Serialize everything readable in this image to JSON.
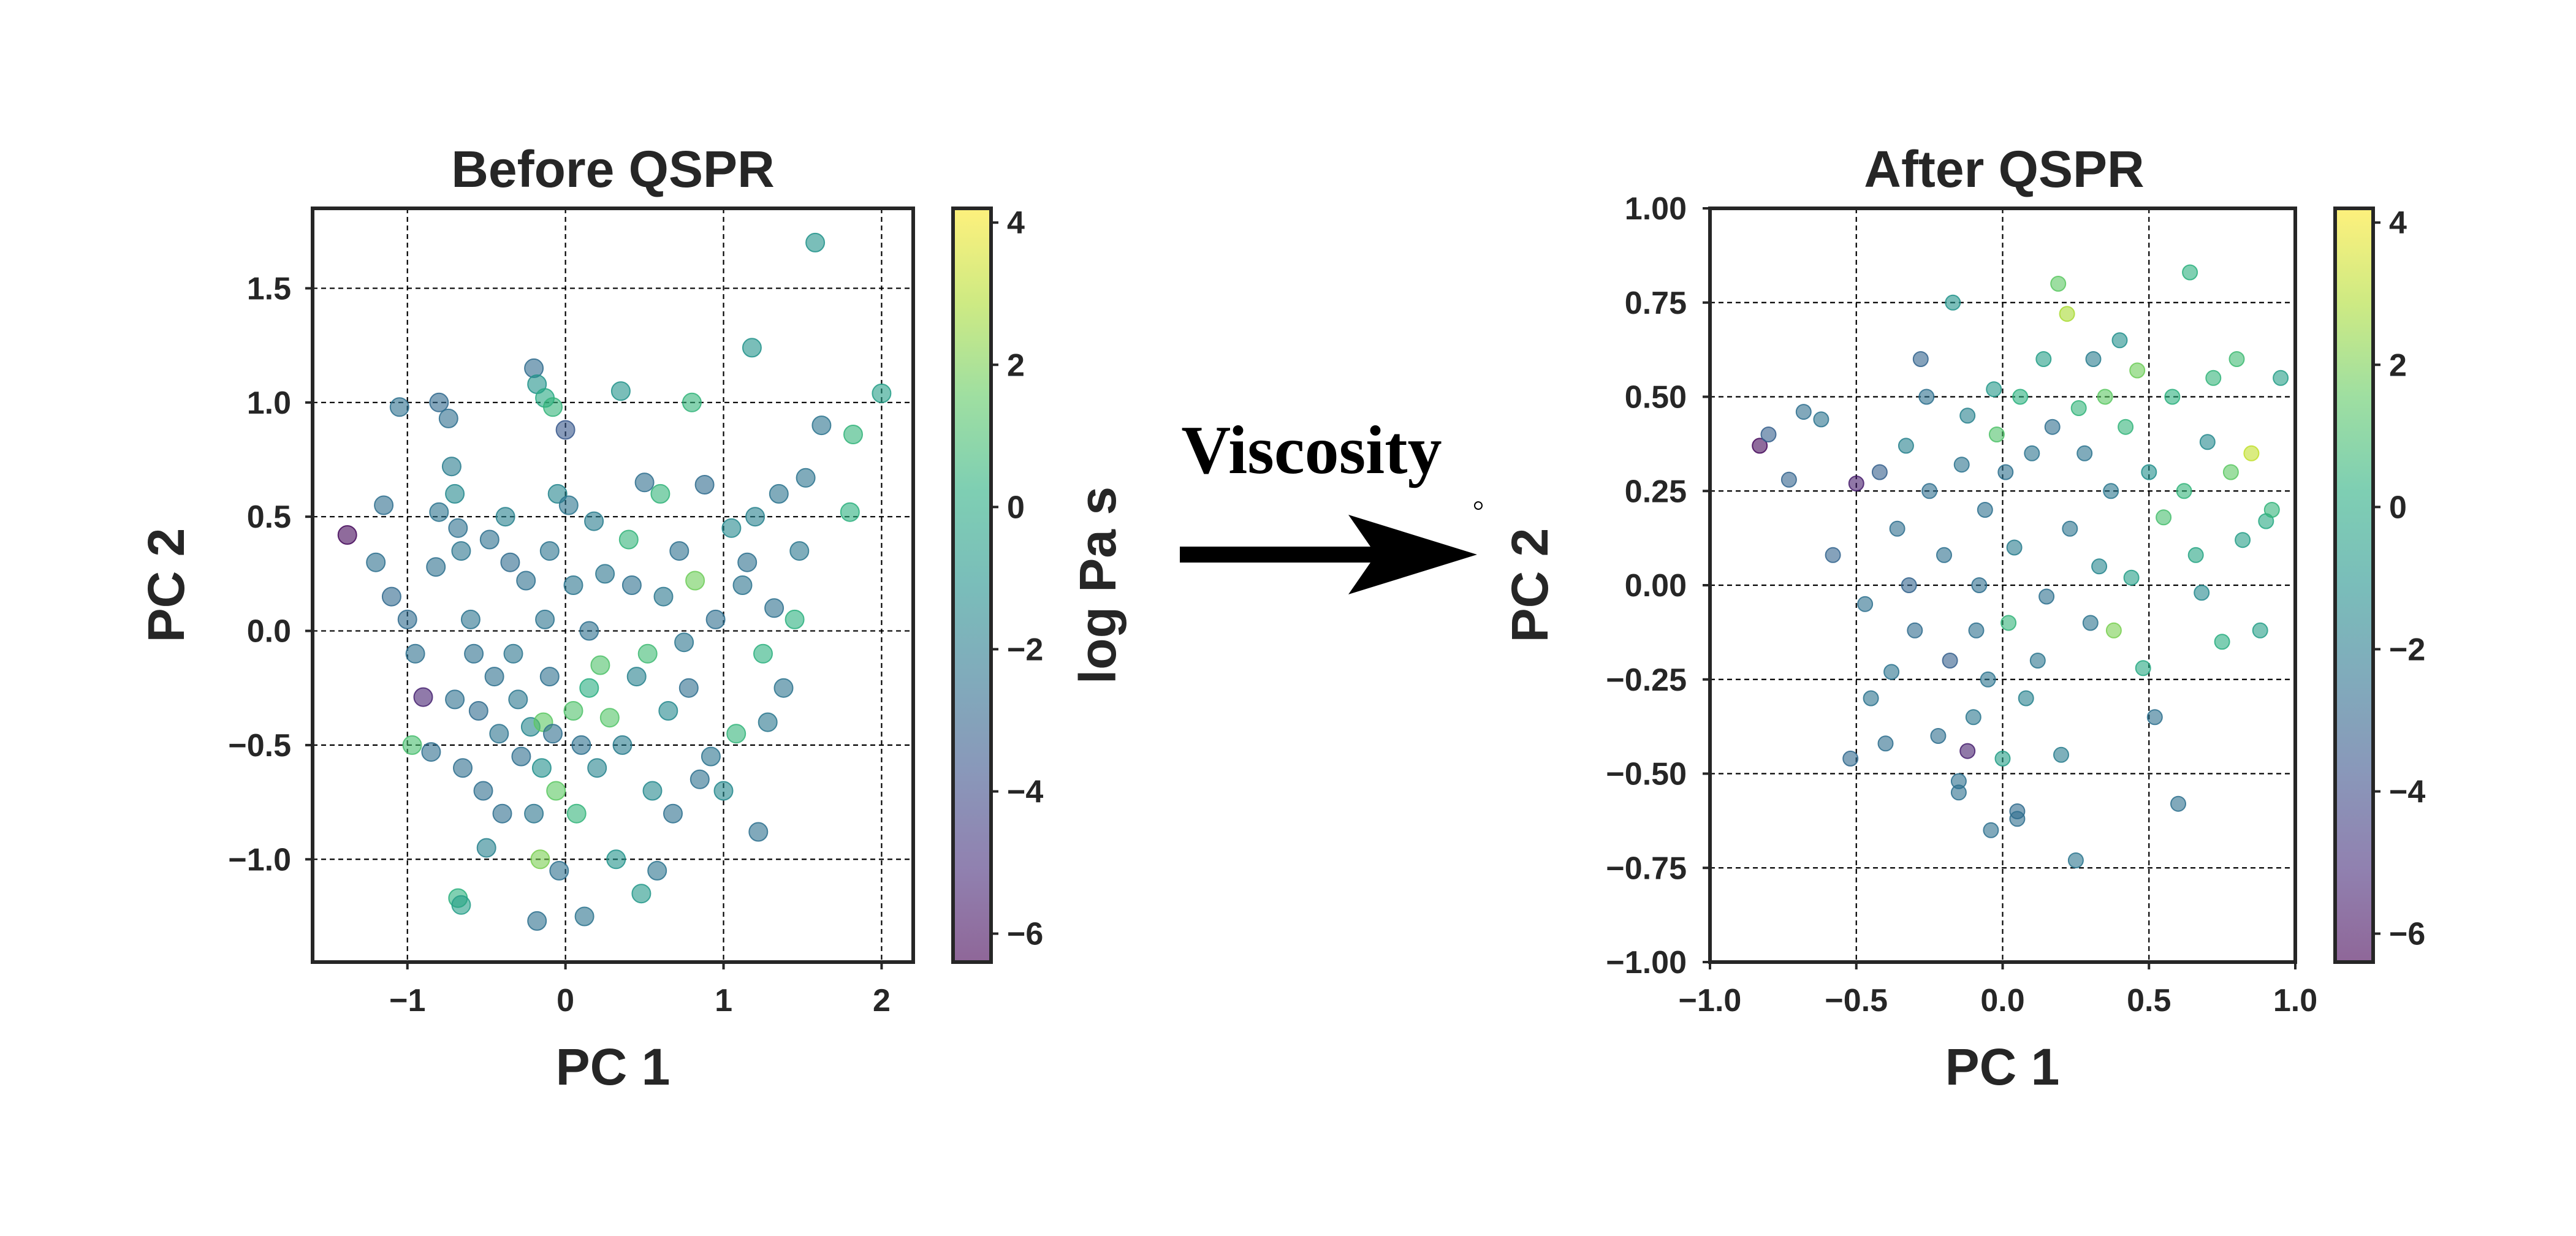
{
  "chart_data": [
    {
      "type": "scatter",
      "title": "Before QSPR",
      "xlabel": "PC 1",
      "ylabel": "PC 2",
      "xlim": [
        -1.6,
        2.2
      ],
      "ylim": [
        -1.45,
        1.85
      ],
      "xticks": [
        -1,
        0,
        1,
        2
      ],
      "xtick_labels": [
        "−1",
        "0",
        "1",
        "2"
      ],
      "yticks": [
        -1.0,
        -0.5,
        0.0,
        0.5,
        1.0,
        1.5
      ],
      "ytick_labels": [
        "−1.0",
        "−0.5",
        "0.0",
        "0.5",
        "1.0",
        "1.5"
      ],
      "grid": true,
      "colorbar": {
        "label": "log Pa s",
        "range": [
          -6.4,
          4.2
        ],
        "ticks": [
          4,
          2,
          0,
          -2,
          -4,
          -6
        ],
        "tick_labels": [
          "4",
          "2",
          "0",
          "−2",
          "−4",
          "−6"
        ],
        "colormap": "viridis"
      },
      "points": [
        [
          -1.38,
          0.42,
          -6.2
        ],
        [
          -1.2,
          0.3,
          -2.5
        ],
        [
          -1.15,
          0.55,
          -2.6
        ],
        [
          -1.05,
          0.98,
          -2.5
        ],
        [
          -1.1,
          0.15,
          -2.8
        ],
        [
          -1.0,
          0.05,
          -2.7
        ],
        [
          -0.95,
          -0.1,
          -2.5
        ],
        [
          -0.9,
          -0.29,
          -5.4
        ],
        [
          -0.97,
          -0.5,
          1.0
        ],
        [
          -0.85,
          -0.53,
          -2.6
        ],
        [
          -0.82,
          0.28,
          -2.5
        ],
        [
          -0.8,
          0.52,
          -2.4
        ],
        [
          -0.8,
          1.0,
          -2.8
        ],
        [
          -0.74,
          0.93,
          -2.6
        ],
        [
          -0.72,
          0.72,
          -2.0
        ],
        [
          -0.7,
          0.6,
          -1.5
        ],
        [
          -0.68,
          0.45,
          -2.5
        ],
        [
          -0.66,
          0.35,
          -2.3
        ],
        [
          -0.7,
          -0.3,
          -2.5
        ],
        [
          -0.65,
          -0.6,
          -2.6
        ],
        [
          -0.68,
          -1.17,
          0.3
        ],
        [
          -0.66,
          -1.2,
          -0.5
        ],
        [
          -0.6,
          0.05,
          -2.4
        ],
        [
          -0.58,
          -0.1,
          -2.5
        ],
        [
          -0.55,
          -0.35,
          -2.7
        ],
        [
          -0.52,
          -0.7,
          -2.6
        ],
        [
          -0.5,
          -0.95,
          -1.8
        ],
        [
          -0.48,
          0.4,
          -2.5
        ],
        [
          -0.45,
          -0.2,
          -2.5
        ],
        [
          -0.42,
          -0.45,
          -2.4
        ],
        [
          -0.4,
          -0.8,
          -2.6
        ],
        [
          -0.38,
          0.5,
          -1.8
        ],
        [
          -0.35,
          0.3,
          -2.7
        ],
        [
          -0.33,
          -0.1,
          -2.3
        ],
        [
          -0.3,
          -0.3,
          -2.2
        ],
        [
          -0.28,
          -0.55,
          -2.6
        ],
        [
          -0.25,
          0.22,
          -2.5
        ],
        [
          -0.22,
          -0.42,
          -1.6
        ],
        [
          -0.2,
          -0.8,
          -2.3
        ],
        [
          -0.18,
          -1.27,
          -2.5
        ],
        [
          -0.16,
          -1.0,
          2.0
        ],
        [
          -0.15,
          -0.6,
          -1.2
        ],
        [
          -0.14,
          -0.4,
          1.5
        ],
        [
          -0.13,
          0.05,
          -2.4
        ],
        [
          -0.2,
          1.15,
          -2.7
        ],
        [
          -0.18,
          1.08,
          -1.0
        ],
        [
          -0.13,
          1.02,
          0.0
        ],
        [
          -0.08,
          0.98,
          0.5
        ],
        [
          -0.05,
          0.6,
          -1.6
        ],
        [
          -0.1,
          0.35,
          -2.4
        ],
        [
          -0.1,
          -0.2,
          -2.5
        ],
        [
          -0.08,
          -0.45,
          -2.6
        ],
        [
          -0.06,
          -0.7,
          1.5
        ],
        [
          -0.04,
          -1.05,
          -2.5
        ],
        [
          0.0,
          0.88,
          -3.5
        ],
        [
          0.02,
          0.55,
          -2.3
        ],
        [
          0.05,
          0.2,
          -2.3
        ],
        [
          0.05,
          -0.35,
          1.2
        ],
        [
          0.07,
          -0.8,
          0.5
        ],
        [
          0.1,
          -0.5,
          -2.5
        ],
        [
          0.12,
          -1.25,
          -2.4
        ],
        [
          0.15,
          0.0,
          -2.5
        ],
        [
          0.15,
          -0.25,
          0.2
        ],
        [
          0.18,
          0.48,
          -2.0
        ],
        [
          0.2,
          -0.6,
          -1.7
        ],
        [
          0.22,
          -0.15,
          1.2
        ],
        [
          0.25,
          0.25,
          -2.3
        ],
        [
          0.28,
          -0.38,
          1.3
        ],
        [
          0.32,
          -1.0,
          -1.0
        ],
        [
          0.35,
          1.05,
          -1.0
        ],
        [
          0.36,
          -0.5,
          -2.0
        ],
        [
          0.4,
          0.4,
          0.5
        ],
        [
          0.42,
          0.2,
          -2.5
        ],
        [
          0.45,
          -0.2,
          -1.8
        ],
        [
          0.48,
          -1.15,
          -0.8
        ],
        [
          0.5,
          0.65,
          -2.6
        ],
        [
          0.52,
          -0.1,
          0.8
        ],
        [
          0.55,
          -0.7,
          -1.5
        ],
        [
          0.58,
          -1.05,
          -2.4
        ],
        [
          0.6,
          0.6,
          0.5
        ],
        [
          0.62,
          0.15,
          -2.2
        ],
        [
          0.65,
          -0.35,
          -1.5
        ],
        [
          0.68,
          -0.8,
          -2.5
        ],
        [
          0.72,
          0.35,
          -2.5
        ],
        [
          0.75,
          -0.05,
          -2.3
        ],
        [
          0.78,
          -0.25,
          -2.6
        ],
        [
          0.8,
          1.0,
          0.5
        ],
        [
          0.82,
          0.22,
          1.8
        ],
        [
          0.85,
          -0.65,
          -2.5
        ],
        [
          0.88,
          0.64,
          -2.7
        ],
        [
          0.92,
          -0.55,
          -2.4
        ],
        [
          0.95,
          0.05,
          -2.6
        ],
        [
          1.0,
          -0.7,
          -1.5
        ],
        [
          1.05,
          0.45,
          -1.5
        ],
        [
          1.08,
          -0.45,
          0.5
        ],
        [
          1.12,
          0.2,
          -2.4
        ],
        [
          1.15,
          0.3,
          -2.5
        ],
        [
          1.18,
          1.24,
          -1.0
        ],
        [
          1.2,
          0.5,
          -1.8
        ],
        [
          1.22,
          -0.88,
          -2.5
        ],
        [
          1.25,
          -0.1,
          0.3
        ],
        [
          1.28,
          -0.4,
          -2.2
        ],
        [
          1.32,
          0.1,
          -2.5
        ],
        [
          1.35,
          0.6,
          -2.4
        ],
        [
          1.38,
          -0.25,
          -2.4
        ],
        [
          1.45,
          0.05,
          0.3
        ],
        [
          1.52,
          0.67,
          -2.4
        ],
        [
          1.48,
          0.35,
          -2.2
        ],
        [
          1.58,
          1.7,
          -1.0
        ],
        [
          1.62,
          0.9,
          -2.4
        ],
        [
          1.8,
          0.52,
          0.3
        ],
        [
          1.82,
          0.86,
          0.5
        ],
        [
          2.0,
          1.04,
          -0.5
        ]
      ]
    },
    {
      "type": "scatter",
      "title": "After QSPR",
      "xlabel": "PC 1",
      "ylabel": "PC 2",
      "xlim": [
        -1.0,
        1.0
      ],
      "ylim": [
        -1.0,
        1.0
      ],
      "xticks": [
        -1.0,
        -0.5,
        0.0,
        0.5,
        1.0
      ],
      "xtick_labels": [
        "−1.0",
        "−0.5",
        "0.0",
        "0.5",
        "1.0"
      ],
      "yticks": [
        -1.0,
        -0.75,
        -0.5,
        -0.25,
        0.0,
        0.25,
        0.5,
        0.75,
        1.0
      ],
      "ytick_labels": [
        "−1.00",
        "−0.75",
        "−0.50",
        "−0.25",
        "0.00",
        "0.25",
        "0.50",
        "0.75",
        "1.00"
      ],
      "grid": true,
      "colorbar": {
        "label": "",
        "range": [
          -6.4,
          4.2
        ],
        "ticks": [
          4,
          2,
          0,
          -2,
          -4,
          -6
        ],
        "tick_labels": [
          "4",
          "2",
          "0",
          "−2",
          "−4",
          "−6"
        ],
        "colormap": "viridis"
      },
      "points": [
        [
          -0.83,
          0.37,
          -6.2
        ],
        [
          -0.8,
          0.4,
          -3.2
        ],
        [
          -0.73,
          0.28,
          -3.0
        ],
        [
          -0.68,
          0.46,
          -2.6
        ],
        [
          -0.62,
          0.44,
          -2.4
        ],
        [
          -0.58,
          0.08,
          -3.0
        ],
        [
          -0.5,
          0.27,
          -5.6
        ],
        [
          -0.52,
          -0.46,
          -2.8
        ],
        [
          -0.47,
          -0.05,
          -2.5
        ],
        [
          -0.45,
          -0.3,
          -2.4
        ],
        [
          -0.42,
          0.3,
          -3.2
        ],
        [
          -0.4,
          -0.42,
          -2.6
        ],
        [
          -0.38,
          -0.23,
          -2.4
        ],
        [
          -0.36,
          0.15,
          -2.6
        ],
        [
          -0.33,
          0.37,
          -1.8
        ],
        [
          -0.32,
          0.0,
          -3.0
        ],
        [
          -0.3,
          -0.12,
          -2.7
        ],
        [
          -0.28,
          0.6,
          -3.0
        ],
        [
          -0.26,
          0.5,
          -2.5
        ],
        [
          -0.25,
          0.25,
          -2.6
        ],
        [
          -0.22,
          -0.4,
          -2.6
        ],
        [
          -0.2,
          0.08,
          -2.5
        ],
        [
          -0.18,
          -0.2,
          -3.2
        ],
        [
          -0.17,
          0.75,
          -1.0
        ],
        [
          -0.15,
          -0.55,
          -2.5
        ],
        [
          -0.14,
          0.32,
          -2.4
        ],
        [
          -0.12,
          0.45,
          -1.8
        ],
        [
          -0.1,
          -0.35,
          -2.2
        ],
        [
          -0.09,
          -0.12,
          -2.5
        ],
        [
          -0.08,
          0.0,
          -2.6
        ],
        [
          -0.06,
          0.2,
          -2.5
        ],
        [
          -0.05,
          -0.25,
          -2.4
        ],
        [
          -0.04,
          -0.65,
          -2.5
        ],
        [
          -0.03,
          0.52,
          -0.8
        ],
        [
          -0.02,
          0.4,
          1.2
        ],
        [
          0.0,
          -0.46,
          -0.5
        ],
        [
          0.01,
          0.3,
          -2.5
        ],
        [
          0.02,
          -0.1,
          0.5
        ],
        [
          0.04,
          0.1,
          -2.0
        ],
        [
          0.05,
          -0.6,
          -2.7
        ],
        [
          0.06,
          0.5,
          0.3
        ],
        [
          0.08,
          -0.3,
          -1.8
        ],
        [
          0.1,
          0.35,
          -2.4
        ],
        [
          0.12,
          -0.2,
          -2.3
        ],
        [
          0.14,
          0.6,
          -0.5
        ],
        [
          0.15,
          -0.03,
          -2.5
        ],
        [
          0.17,
          0.42,
          -2.6
        ],
        [
          0.19,
          0.8,
          1.5
        ],
        [
          0.2,
          -0.45,
          -2.0
        ],
        [
          0.22,
          0.72,
          2.8
        ],
        [
          0.23,
          0.15,
          -2.4
        ],
        [
          0.25,
          -0.73,
          -2.3
        ],
        [
          0.26,
          0.47,
          0.5
        ],
        [
          0.28,
          0.35,
          -2.4
        ],
        [
          0.3,
          -0.1,
          -2.4
        ],
        [
          0.31,
          0.6,
          -2.0
        ],
        [
          0.33,
          0.05,
          -1.6
        ],
        [
          0.35,
          0.5,
          1.5
        ],
        [
          0.37,
          0.25,
          -2.2
        ],
        [
          0.38,
          -0.12,
          2.0
        ],
        [
          0.4,
          0.65,
          -1.2
        ],
        [
          0.42,
          0.42,
          0.5
        ],
        [
          0.44,
          0.02,
          -0.5
        ],
        [
          0.46,
          0.57,
          1.8
        ],
        [
          0.48,
          -0.22,
          0.0
        ],
        [
          0.5,
          0.3,
          -1.2
        ],
        [
          0.52,
          -0.35,
          -2.5
        ],
        [
          0.55,
          0.18,
          1.0
        ],
        [
          0.58,
          0.5,
          0.3
        ],
        [
          0.6,
          -0.58,
          -2.5
        ],
        [
          0.62,
          0.25,
          0.5
        ],
        [
          0.64,
          0.83,
          0.3
        ],
        [
          0.66,
          0.08,
          -0.2
        ],
        [
          0.68,
          -0.02,
          -1.5
        ],
        [
          0.7,
          0.38,
          -1.5
        ],
        [
          0.72,
          0.55,
          0.5
        ],
        [
          0.75,
          -0.15,
          0.2
        ],
        [
          0.78,
          0.3,
          1.5
        ],
        [
          0.8,
          0.6,
          0.8
        ],
        [
          0.82,
          0.12,
          -0.5
        ],
        [
          0.85,
          0.35,
          3.2
        ],
        [
          0.88,
          -0.12,
          -0.5
        ],
        [
          0.9,
          0.17,
          0.0
        ],
        [
          0.92,
          0.2,
          0.5
        ],
        [
          0.95,
          0.55,
          -0.5
        ],
        [
          -0.15,
          -0.52,
          -2.5
        ],
        [
          0.05,
          -0.62,
          -2.6
        ],
        [
          -0.12,
          -0.44,
          -5.5
        ]
      ]
    }
  ],
  "annotation": {
    "arrow_label": "Viscosity"
  }
}
